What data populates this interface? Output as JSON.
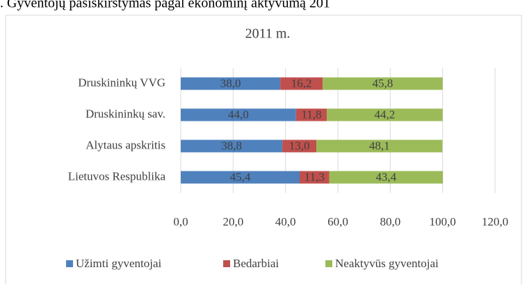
{
  "caption": ". Gyventojų pasiskirstymas pagal ekonominį aktyvumą 201",
  "chart_data": {
    "type": "stacked-barh",
    "title": "2011 m.",
    "categories": [
      "Druskininkų VVG",
      "Druskininkų sav.",
      "Alytaus apskritis",
      "Lietuvos Respublika"
    ],
    "series": [
      {
        "name": "Užimti gyventojai",
        "color": "#4f81bd",
        "values": [
          38.0,
          44.0,
          38.8,
          45.4
        ],
        "value_labels": [
          "38,0",
          "44,0",
          "38,8",
          "45,4"
        ]
      },
      {
        "name": "Bedarbiai",
        "color": "#c0504d",
        "values": [
          16.2,
          11.8,
          13.0,
          11.3
        ],
        "value_labels": [
          "16,2",
          "11,8",
          "13,0",
          "11,3"
        ]
      },
      {
        "name": "Neaktyvūs gyventojai",
        "color": "#9bbb59",
        "values": [
          45.8,
          44.2,
          48.1,
          43.4
        ],
        "value_labels": [
          "45,8",
          "44,2",
          "48,1",
          "43,4"
        ]
      }
    ],
    "xlim": [
      0,
      120
    ],
    "xticks": [
      {
        "value": 0,
        "label": "0,0"
      },
      {
        "value": 20,
        "label": "20,0"
      },
      {
        "value": 40,
        "label": "40,0"
      },
      {
        "value": 60,
        "label": "60,0"
      },
      {
        "value": 80,
        "label": "80,0"
      },
      {
        "value": 100,
        "label": "100,0"
      },
      {
        "value": 120,
        "label": "120,0"
      }
    ],
    "grid": true,
    "legend": "bottom"
  }
}
